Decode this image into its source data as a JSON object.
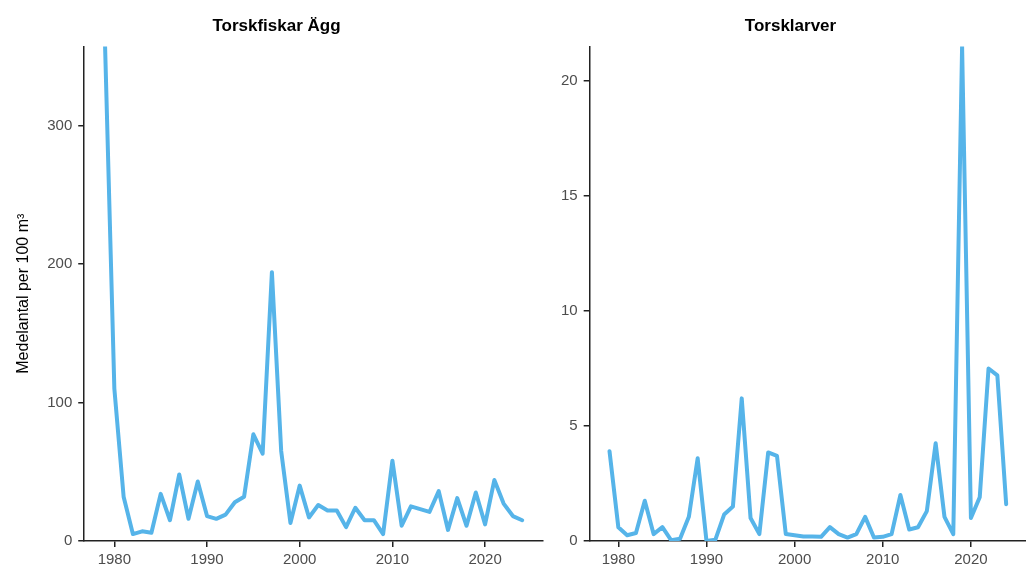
{
  "chart_data": [
    {
      "type": "line",
      "title": "Torskfiskar Ägg",
      "ylabel": "Medelantal per 100 m³",
      "x": [
        1979,
        1980,
        1981,
        1982,
        1983,
        1984,
        1985,
        1986,
        1987,
        1988,
        1989,
        1990,
        1991,
        1992,
        1993,
        1994,
        1995,
        1996,
        1997,
        1998,
        1999,
        2000,
        2001,
        2002,
        2003,
        2004,
        2005,
        2006,
        2007,
        2008,
        2009,
        2010,
        2011,
        2012,
        2013,
        2014,
        2015,
        2016,
        2017,
        2018,
        2019,
        2020,
        2021,
        2022,
        2023,
        2024
      ],
      "series": [
        {
          "color": "#56b4e9",
          "values": [
            357,
            110,
            32,
            5,
            7,
            6,
            34,
            15,
            48,
            16,
            43,
            18,
            16,
            19,
            28,
            32,
            77,
            63,
            194,
            65,
            13,
            40,
            17,
            26,
            22,
            22,
            10,
            24,
            15,
            15,
            5,
            58,
            11,
            25,
            23,
            21,
            36,
            8,
            31,
            11,
            35,
            12,
            44,
            27,
            18,
            15
          ]
        }
      ],
      "xlim": [
        1976.75,
        2026.25
      ],
      "xticks": [
        1980,
        1990,
        2000,
        2010,
        2020
      ],
      "ylim": [
        0,
        357
      ],
      "yticks": [
        0,
        100,
        200,
        300
      ]
    },
    {
      "type": "line",
      "title": "Torsklarver",
      "x": [
        1979,
        1980,
        1981,
        1982,
        1983,
        1984,
        1985,
        1986,
        1987,
        1988,
        1989,
        1990,
        1991,
        1992,
        1993,
        1994,
        1995,
        1996,
        1997,
        1998,
        1999,
        2000,
        2001,
        2002,
        2003,
        2004,
        2005,
        2006,
        2007,
        2008,
        2009,
        2010,
        2011,
        2012,
        2013,
        2014,
        2015,
        2016,
        2017,
        2018,
        2019,
        2020,
        2021,
        2022,
        2023,
        2024
      ],
      "series": [
        {
          "color": "#56b4e9",
          "values": [
            3.9,
            0.6,
            0.25,
            0.35,
            1.75,
            0.3,
            0.6,
            0.03,
            0.1,
            1.05,
            3.6,
            0,
            0.05,
            1.15,
            1.5,
            6.2,
            1.0,
            0.3,
            3.85,
            3.7,
            0.3,
            0.25,
            0.2,
            0.2,
            0.18,
            0.6,
            0.3,
            0.15,
            0.3,
            1.05,
            0.15,
            0.18,
            0.3,
            2.0,
            0.5,
            0.6,
            1.3,
            4.25,
            1.05,
            0.3,
            21.5,
            1.0,
            1.9,
            7.5,
            7.2,
            1.6
          ]
        }
      ],
      "xlim": [
        1976.75,
        2026.25
      ],
      "xticks": [
        1980,
        1990,
        2000,
        2010,
        2020
      ],
      "ylim": [
        0,
        21.5
      ],
      "yticks": [
        0,
        5,
        10,
        15,
        20
      ]
    }
  ]
}
